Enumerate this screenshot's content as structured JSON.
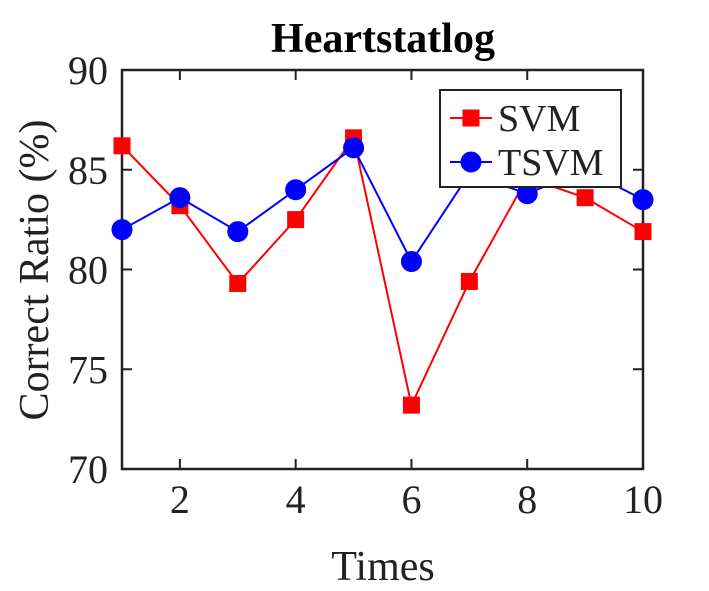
{
  "chart_data": {
    "type": "line",
    "title": "Heartstatlog",
    "xlabel": "Times",
    "ylabel": "Correct Ratio (%)",
    "xlim": [
      1,
      10
    ],
    "ylim": [
      70,
      90
    ],
    "xticks": [
      2,
      4,
      6,
      8,
      10
    ],
    "yticks": [
      70,
      75,
      80,
      85,
      90
    ],
    "grid": false,
    "legend_position": "top-right",
    "x": [
      1,
      2,
      3,
      4,
      5,
      6,
      7,
      8,
      9,
      10
    ],
    "series": [
      {
        "name": "SVM",
        "color": "#ff0000",
        "marker": "square",
        "values": [
          86.2,
          83.2,
          79.3,
          82.5,
          86.6,
          73.2,
          79.4,
          84.6,
          83.6,
          81.9
        ]
      },
      {
        "name": "TSVM",
        "color": "#0000ff",
        "marker": "circle",
        "values": [
          82.0,
          83.6,
          81.9,
          84.0,
          86.1,
          80.4,
          84.8,
          83.8,
          85.0,
          83.5
        ]
      }
    ]
  }
}
